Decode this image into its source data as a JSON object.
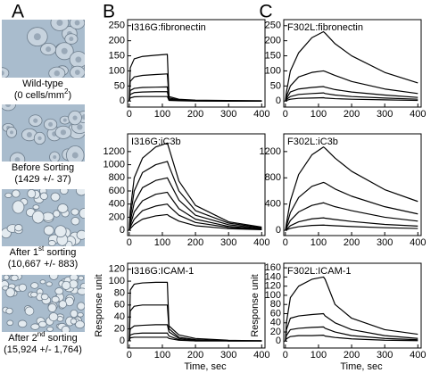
{
  "panel_labels": [
    "A",
    "B",
    "C"
  ],
  "panel_a": {
    "captions": [
      [
        [
          {
            "t": "Wild-type"
          }
        ],
        [
          {
            "t": "(0 cells/mm"
          },
          {
            "sup": "2"
          },
          {
            "t": ")"
          }
        ]
      ],
      [
        [
          {
            "t": "Before Sorting"
          }
        ],
        [
          {
            "t": "(1429 +/- 37)"
          }
        ]
      ],
      [
        [
          {
            "t": "After 1"
          },
          {
            "sup": "st"
          },
          {
            "t": " sorting"
          }
        ],
        [
          {
            "t": "(10,667 +/- 883)"
          }
        ]
      ],
      [
        [
          {
            "t": "After 2"
          },
          {
            "sup": "nd"
          },
          {
            "t": " sorting"
          }
        ],
        [
          {
            "t": "(15,924 +/- 1,764)"
          }
        ]
      ]
    ]
  },
  "chart_data": [
    {
      "type": "line",
      "title": "I316G:fibronectin",
      "x": [
        0,
        3,
        15,
        40,
        80,
        115,
        120,
        150,
        200,
        300,
        400
      ],
      "xlim": [
        -5,
        410
      ],
      "xticks": [
        0,
        100,
        200,
        300,
        400
      ],
      "ylim": [
        -20,
        270
      ],
      "yticks": [
        0,
        50,
        100,
        150,
        200,
        250
      ],
      "series": [
        {
          "color": "#000000",
          "values": [
            0,
            110,
            140,
            148,
            152,
            155,
            15,
            6,
            3,
            2,
            1
          ]
        },
        {
          "color": "#000000",
          "values": [
            0,
            65,
            80,
            85,
            88,
            90,
            10,
            4,
            2,
            1,
            0
          ]
        },
        {
          "color": "#000000",
          "values": [
            0,
            35,
            42,
            45,
            46,
            47,
            6,
            3,
            1,
            0,
            0
          ]
        },
        {
          "color": "#000000",
          "values": [
            0,
            22,
            28,
            30,
            31,
            31,
            4,
            2,
            1,
            0,
            0
          ]
        },
        {
          "color": "#000000",
          "values": [
            0,
            10,
            14,
            15,
            15,
            15,
            2,
            1,
            0,
            0,
            0
          ]
        }
      ]
    },
    {
      "type": "line",
      "title": "I316G:iC3b",
      "x": [
        0,
        3,
        15,
        40,
        80,
        115,
        120,
        150,
        200,
        300,
        400
      ],
      "xlim": [
        -5,
        410
      ],
      "xticks": [
        0,
        100,
        200,
        300,
        400
      ],
      "ylim": [
        -80,
        1470
      ],
      "yticks": [
        0,
        200,
        400,
        600,
        800,
        1000,
        1200
      ],
      "series": [
        {
          "color": "#000000",
          "values": [
            0,
            300,
            800,
            1100,
            1270,
            1330,
            1250,
            750,
            380,
            130,
            50
          ]
        },
        {
          "color": "#000000",
          "values": [
            0,
            200,
            600,
            880,
            1000,
            1050,
            980,
            600,
            300,
            110,
            40
          ]
        },
        {
          "color": "#000000",
          "values": [
            0,
            130,
            420,
            650,
            760,
            800,
            750,
            460,
            230,
            85,
            30
          ]
        },
        {
          "color": "#000000",
          "values": [
            0,
            80,
            280,
            450,
            550,
            580,
            540,
            330,
            170,
            60,
            20
          ]
        },
        {
          "color": "#000000",
          "values": [
            0,
            50,
            170,
            300,
            370,
            400,
            370,
            230,
            120,
            45,
            15
          ]
        },
        {
          "color": "#000000",
          "values": [
            0,
            25,
            90,
            170,
            220,
            240,
            220,
            140,
            70,
            25,
            10
          ]
        }
      ]
    },
    {
      "type": "line",
      "title": "I316G:ICAM-1",
      "xlabel": "Time, sec",
      "ylabel": "Response unit",
      "x": [
        0,
        3,
        15,
        40,
        80,
        115,
        120,
        150,
        200,
        300,
        400
      ],
      "xlim": [
        -5,
        410
      ],
      "xticks": [
        0,
        100,
        200,
        300,
        400
      ],
      "ylim": [
        -12,
        130
      ],
      "yticks": [
        0,
        20,
        40,
        60,
        80,
        100,
        120
      ],
      "series": [
        {
          "color": "#000000",
          "values": [
            0,
            85,
            95,
            97,
            98,
            98,
            25,
            10,
            4,
            1,
            0
          ]
        },
        {
          "color": "#000000",
          "values": [
            0,
            50,
            58,
            60,
            60,
            60,
            20,
            6,
            2,
            0,
            0
          ]
        },
        {
          "color": "#000000",
          "values": [
            0,
            20,
            25,
            26,
            27,
            27,
            15,
            4,
            1,
            0,
            0
          ]
        },
        {
          "color": "#000000",
          "values": [
            0,
            10,
            12,
            13,
            13,
            13,
            8,
            2,
            0,
            0,
            0
          ]
        },
        {
          "color": "#000000",
          "values": [
            0,
            5,
            6,
            6,
            6,
            6,
            4,
            1,
            0,
            0,
            0
          ]
        }
      ]
    },
    {
      "type": "line",
      "title": "F302L:fibronectin",
      "x": [
        0,
        3,
        15,
        40,
        80,
        115,
        120,
        150,
        200,
        300,
        400
      ],
      "xlim": [
        -5,
        410
      ],
      "xticks": [
        0,
        100,
        200,
        300,
        400
      ],
      "ylim": [
        -20,
        270
      ],
      "yticks": [
        0,
        50,
        100,
        150,
        200,
        250
      ],
      "series": [
        {
          "color": "#000000",
          "values": [
            0,
            30,
            100,
            160,
            210,
            230,
            225,
            190,
            150,
            95,
            60
          ]
        },
        {
          "color": "#000000",
          "values": [
            0,
            15,
            50,
            80,
            95,
            100,
            98,
            85,
            65,
            40,
            25
          ]
        },
        {
          "color": "#000000",
          "values": [
            0,
            8,
            30,
            40,
            45,
            48,
            46,
            38,
            30,
            20,
            12
          ]
        },
        {
          "color": "#000000",
          "values": [
            0,
            5,
            15,
            22,
            25,
            27,
            25,
            20,
            15,
            10,
            6
          ]
        },
        {
          "color": "#000000",
          "values": [
            0,
            2,
            6,
            9,
            10,
            11,
            10,
            8,
            6,
            4,
            2
          ]
        }
      ]
    },
    {
      "type": "line",
      "title": "F302L:iC3b",
      "x": [
        0,
        3,
        15,
        40,
        80,
        115,
        120,
        150,
        200,
        300,
        400
      ],
      "xlim": [
        -5,
        410
      ],
      "xticks": [
        0,
        100,
        200,
        300,
        400
      ],
      "ylim": [
        -80,
        1470
      ],
      "yticks": [
        0,
        400,
        800,
        1200
      ],
      "series": [
        {
          "color": "#000000",
          "values": [
            0,
            100,
            450,
            850,
            1150,
            1270,
            1250,
            1100,
            900,
            620,
            440
          ]
        },
        {
          "color": "#000000",
          "values": [
            0,
            60,
            270,
            500,
            670,
            730,
            720,
            630,
            520,
            360,
            250
          ]
        },
        {
          "color": "#000000",
          "values": [
            0,
            35,
            150,
            280,
            380,
            420,
            410,
            360,
            300,
            200,
            140
          ]
        },
        {
          "color": "#000000",
          "values": [
            0,
            15,
            70,
            130,
            175,
            190,
            185,
            165,
            135,
            90,
            65
          ]
        },
        {
          "color": "#000000",
          "values": [
            0,
            8,
            30,
            55,
            75,
            80,
            78,
            70,
            58,
            40,
            28
          ]
        }
      ]
    },
    {
      "type": "line",
      "title": "F302L:ICAM-1",
      "xlabel": "Time, sec",
      "ylabel": "Response unit",
      "x": [
        0,
        3,
        15,
        40,
        80,
        115,
        120,
        150,
        200,
        300,
        400
      ],
      "xlim": [
        -5,
        410
      ],
      "xticks": [
        0,
        100,
        200,
        300,
        400
      ],
      "ylim": [
        -15,
        170
      ],
      "yticks": [
        0,
        20,
        40,
        60,
        80,
        100,
        120,
        140,
        160
      ],
      "series": [
        {
          "color": "#000000",
          "values": [
            0,
            40,
            95,
            120,
            135,
            140,
            135,
            80,
            50,
            25,
            15
          ]
        },
        {
          "color": "#000000",
          "values": [
            0,
            25,
            50,
            55,
            58,
            60,
            55,
            40,
            25,
            12,
            6
          ]
        },
        {
          "color": "#000000",
          "values": [
            0,
            12,
            25,
            28,
            30,
            31,
            28,
            20,
            12,
            6,
            3
          ]
        },
        {
          "color": "#000000",
          "values": [
            0,
            5,
            10,
            12,
            12,
            13,
            11,
            8,
            5,
            2,
            1
          ]
        }
      ]
    }
  ]
}
